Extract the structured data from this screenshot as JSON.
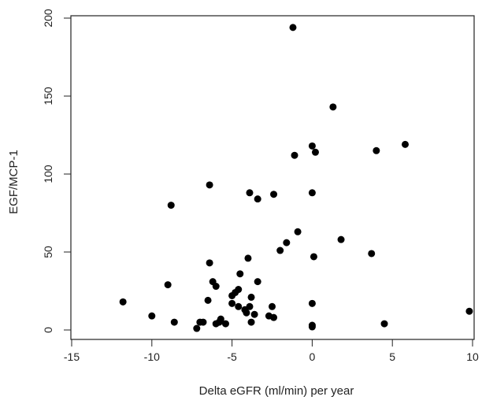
{
  "chart_data": {
    "type": "scatter",
    "title": "",
    "xlabel": "Delta eGFR (ml/min) per year",
    "ylabel": "EGF/MCP-1",
    "xlim": [
      -15,
      10
    ],
    "ylim": [
      0,
      200
    ],
    "xticks": [
      -15,
      -10,
      -5,
      0,
      5,
      10
    ],
    "yticks": [
      0,
      50,
      100,
      150,
      200
    ],
    "grid": false,
    "legend": "none",
    "point_color": "#000000",
    "points": [
      {
        "x": -1.2,
        "y": 194
      },
      {
        "x": 1.3,
        "y": 143
      },
      {
        "x": 5.8,
        "y": 119
      },
      {
        "x": 0.0,
        "y": 118
      },
      {
        "x": 4.0,
        "y": 115
      },
      {
        "x": 0.2,
        "y": 114
      },
      {
        "x": -1.1,
        "y": 112
      },
      {
        "x": -6.4,
        "y": 93
      },
      {
        "x": -3.9,
        "y": 88
      },
      {
        "x": -2.4,
        "y": 87
      },
      {
        "x": 0.0,
        "y": 88
      },
      {
        "x": -3.4,
        "y": 84
      },
      {
        "x": -8.8,
        "y": 80
      },
      {
        "x": -0.9,
        "y": 63
      },
      {
        "x": 1.8,
        "y": 58
      },
      {
        "x": -1.6,
        "y": 56
      },
      {
        "x": -2.0,
        "y": 51
      },
      {
        "x": 3.7,
        "y": 49
      },
      {
        "x": 0.1,
        "y": 47
      },
      {
        "x": -4.0,
        "y": 46
      },
      {
        "x": -6.4,
        "y": 43
      },
      {
        "x": -4.5,
        "y": 36
      },
      {
        "x": -6.2,
        "y": 31
      },
      {
        "x": -3.4,
        "y": 31
      },
      {
        "x": -9.0,
        "y": 29
      },
      {
        "x": -6.0,
        "y": 28
      },
      {
        "x": -4.6,
        "y": 26
      },
      {
        "x": -4.8,
        "y": 24
      },
      {
        "x": -5.0,
        "y": 22
      },
      {
        "x": -3.8,
        "y": 21
      },
      {
        "x": -6.5,
        "y": 19
      },
      {
        "x": -11.8,
        "y": 18
      },
      {
        "x": -0.0,
        "y": 17
      },
      {
        "x": -5.0,
        "y": 17
      },
      {
        "x": -4.6,
        "y": 15
      },
      {
        "x": -3.9,
        "y": 15
      },
      {
        "x": -2.5,
        "y": 15
      },
      {
        "x": -4.2,
        "y": 13
      },
      {
        "x": -4.1,
        "y": 11
      },
      {
        "x": 9.8,
        "y": 12
      },
      {
        "x": -3.6,
        "y": 10
      },
      {
        "x": -10.0,
        "y": 9
      },
      {
        "x": -2.7,
        "y": 9
      },
      {
        "x": -2.4,
        "y": 8
      },
      {
        "x": -5.7,
        "y": 7
      },
      {
        "x": -5.8,
        "y": 5
      },
      {
        "x": -8.6,
        "y": 5
      },
      {
        "x": -7.0,
        "y": 5
      },
      {
        "x": -6.8,
        "y": 5
      },
      {
        "x": -3.8,
        "y": 5
      },
      {
        "x": -6.0,
        "y": 4
      },
      {
        "x": -5.4,
        "y": 4
      },
      {
        "x": 4.5,
        "y": 4
      },
      {
        "x": 0.0,
        "y": 3
      },
      {
        "x": 0.0,
        "y": 2
      },
      {
        "x": -7.2,
        "y": 1
      }
    ]
  }
}
